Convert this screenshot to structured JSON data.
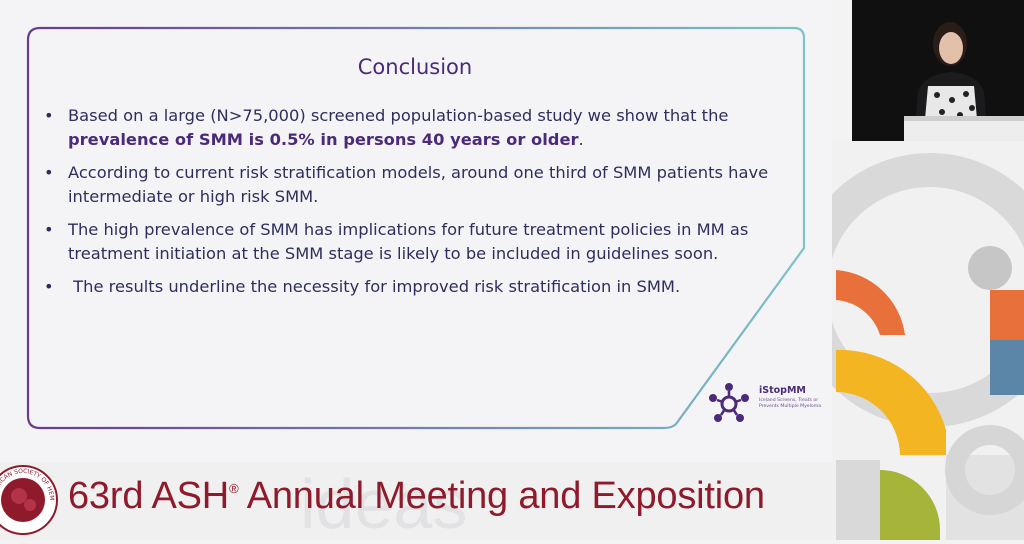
{
  "slide": {
    "title": "Conclusion",
    "bullets": [
      {
        "line1": "Based on a large (N>75,000) screened population-based study we show that the",
        "bold": "prevalence of SMM is 0.5% in persons 40 years or older",
        "end": "."
      },
      {
        "text": "According to current risk stratification models, around one third of SMM patients have intermediate or high risk SMM."
      },
      {
        "text": "The high prevalence of SMM has implications for future treatment policies in MM as treatment initiation at the SMM stage is likely to be included in guidelines soon."
      },
      {
        "text": " The results underline the necessity for improved risk stratification in SMM."
      }
    ],
    "logo": {
      "name": "iStopMM",
      "tagline": "Iceland Screens, Treats or Prevents Multiple Myeloma"
    }
  },
  "banner": {
    "text": "63rd ASH",
    "sup": "®",
    "text_rest": " Annual Meeting and Exposition",
    "seal_text": "AMERICAN SOCIETY OF HEMATOLOGY"
  },
  "colors": {
    "accent_purple": "#4b2a7a",
    "banner_red": "#8f1a2c",
    "teal": "#7cc3c9",
    "orange": "#e8703a",
    "yellow": "#f4b522",
    "olive": "#a7b43a",
    "blue": "#5b86a8"
  },
  "icons": [
    "istopmm-logo-icon",
    "ash-seal-icon",
    "presenter-webcam"
  ]
}
